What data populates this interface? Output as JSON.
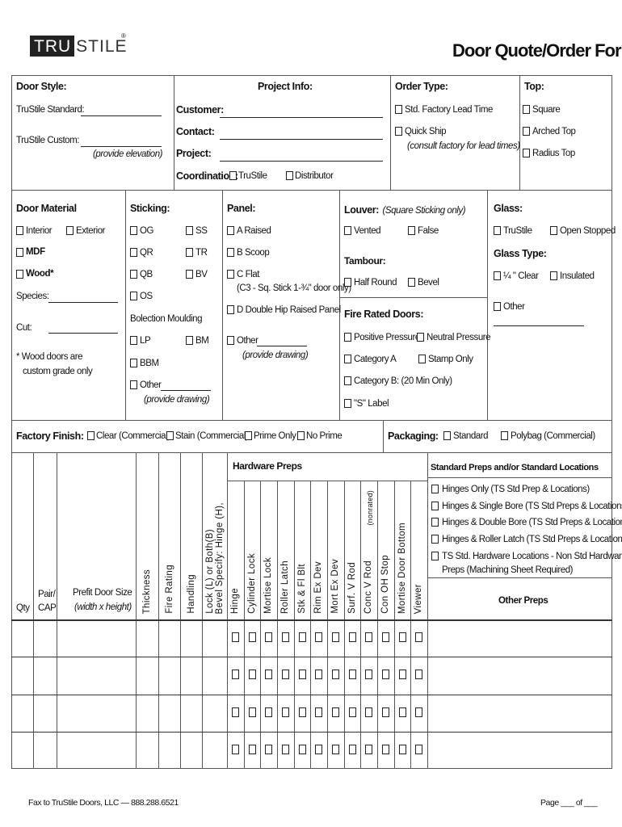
{
  "logo": {
    "text_boxed": "TRU",
    "text_rest": "STILE",
    "mark": "®"
  },
  "title": "Door Quote/Order Form",
  "door_style": {
    "heading": "Door Style:",
    "standard_label": "TruStile Standard:",
    "custom_label": "TruStile Custom:",
    "custom_note": "(provide elevation)"
  },
  "project_info": {
    "heading": "Project Info:",
    "customer": "Customer:",
    "contact": "Contact:",
    "project": "Project:",
    "coordination": "Coordination:",
    "opt_trustile": "TruStile",
    "opt_distributor": "Distributor"
  },
  "order_type": {
    "heading": "Order Type:",
    "std": "Std. Factory Lead Time",
    "quick": "Quick Ship",
    "quick_note": "(consult factory for lead times)"
  },
  "top": {
    "heading": "Top:",
    "square": "Square",
    "arched": "Arched Top",
    "radius": "Radius Top"
  },
  "door_material": {
    "heading": "Door Material",
    "interior": "Interior",
    "exterior": "Exterior",
    "mdf": "MDF",
    "wood": "Wood*",
    "species": "Species:",
    "cut": "Cut:",
    "note1": "*  Wood doors are",
    "note2": "custom grade only"
  },
  "sticking": {
    "heading": "Sticking:",
    "og": "OG",
    "ss": "SS",
    "qr": "QR",
    "tr": "TR",
    "qb": "QB",
    "bv": "BV",
    "os": "OS",
    "bolection": "Bolection Moulding",
    "lp": "LP",
    "bm": "BM",
    "bbm": "BBM",
    "other": "Other",
    "other_note": "(provide drawing)"
  },
  "panel": {
    "heading": "Panel:",
    "a": "A Raised",
    "b": "B Scoop",
    "c": "C Flat",
    "c_note": "(C3 - Sq. Stick 1-¾\" door only)",
    "d": "D Double Hip Raised Panel",
    "other": "Other",
    "other_note": "(provide drawing)"
  },
  "louver": {
    "heading": "Louver:",
    "note": "(Square Sticking only)",
    "vented": "Vented",
    "false": "False"
  },
  "tambour": {
    "heading": "Tambour:",
    "half_round": "Half Round",
    "bevel": "Bevel"
  },
  "fire_rated": {
    "heading": "Fire Rated Doors:",
    "positive": "Positive Pressure",
    "neutral": "Neutral Pressure",
    "cat_a": "Category A",
    "stamp": "Stamp Only",
    "cat_b": "Category B: (20 Min Only)",
    "s_label": "\"S\" Label"
  },
  "glass": {
    "heading": "Glass:",
    "trustile": "TruStile",
    "open_stopped": "Open Stopped",
    "type_heading": "Glass Type:",
    "clear": "¼ \" Clear",
    "insulated": "Insulated",
    "other": "Other"
  },
  "finish": {
    "heading": "Factory Finish:",
    "clear": "Clear (Commercial)",
    "stain": "Stain (Commercial)",
    "prime": "Prime Only",
    "no_prime": "No Prime"
  },
  "packaging": {
    "heading": "Packaging:",
    "standard": "Standard",
    "polybag": "Polybag (Commercial)"
  },
  "table": {
    "qty": "Qty",
    "pair1": "Pair/",
    "pair2": "CAP",
    "prefit1": "Prefit Door Size",
    "prefit2": "(width x height)",
    "rotated": [
      "Thickness",
      "Fire Rating",
      "Handling"
    ],
    "bevel1": "Bevel Specify: Hinge (H),",
    "bevel2": "Lock (L)  or Both(B)",
    "hardware_heading": "Hardware Preps",
    "hardware_cols": [
      "Hinge",
      "Cylinder Lock",
      "Mortise Lock",
      "Roller Latch",
      "Stk & Fl Blt",
      "Rim Ex Dev",
      "Mort Ex Dev",
      "Surf. V Rod",
      "Conc  V Rod",
      "Con OH Stop",
      "Mortise Door Bottom",
      "Viewer"
    ],
    "conc_note": "(nonrated)",
    "std_heading": "Standard Preps and/or Standard Locations",
    "std_items": [
      "Hinges Only (TS Std Prep & Locations)",
      "Hinges & Single Bore (TS Std Preps & Locations)",
      "Hinges & Double Bore (TS Std Preps & Locations)",
      "Hinges & Roller Latch (TS Std Preps & Locations)",
      "TS Std. Hardware Locations - Non Std Hardware"
    ],
    "std_item5_line2": "Preps (Machining Sheet Required)",
    "other_preps": "Other Preps",
    "row_count": 4
  },
  "footer": {
    "fax": "Fax to TruStile Doors, LLC — 888.288.6521",
    "page": "Page ___ of ___"
  }
}
